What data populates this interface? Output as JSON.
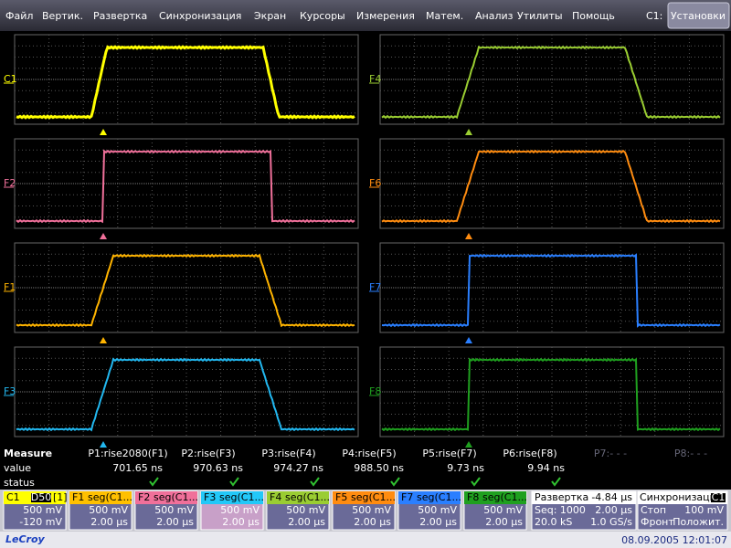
{
  "menu": {
    "items": [
      "Файл",
      "Вертик.",
      "Развертка",
      "Синхронизация",
      "Экран",
      "Курсоры",
      "Измерения",
      "Матем.",
      "Анализ",
      "Утилиты",
      "Помощь"
    ],
    "channel_label": "C1:",
    "button": "Установки"
  },
  "panels": [
    {
      "label": "C1",
      "color": "#ffff00"
    },
    {
      "label": "F2",
      "color": "#f0709a"
    },
    {
      "label": "F1",
      "color": "#ffb400"
    },
    {
      "label": "F3",
      "color": "#22b8f0"
    },
    {
      "label": "F4",
      "color": "#9acd32"
    },
    {
      "label": "F6",
      "color": "#ff8c10"
    },
    {
      "label": "F7",
      "color": "#2a7fff"
    },
    {
      "label": "F8",
      "color": "#1fa01f"
    }
  ],
  "measure": {
    "title": "Measure",
    "row_labels": [
      "value",
      "status"
    ],
    "params": [
      "P1:rise2080(F1)",
      "P2:rise(F3)",
      "P3:rise(F4)",
      "P4:rise(F5)",
      "P5:rise(F7)",
      "P6:rise(F8)",
      "P7:- - -",
      "P8:- - -"
    ],
    "values": [
      "701.65 ns",
      "970.63 ns",
      "974.27 ns",
      "988.50 ns",
      "9.73 ns",
      "9.94 ns"
    ]
  },
  "descriptors": [
    {
      "name": "C1",
      "tag": "D50",
      "extra": "[1]",
      "color": "#ffff00",
      "lines": [
        "500 mV",
        "-120 mV"
      ]
    },
    {
      "name": "F1",
      "source": "seg(C1...",
      "color": "#ffc000",
      "lines": [
        "500 mV",
        "2.00 µs"
      ]
    },
    {
      "name": "F2",
      "source": "seg(C1...",
      "color": "#f0709a",
      "lines": [
        "500 mV",
        "2.00 µs"
      ]
    },
    {
      "name": "F3",
      "source": "seg(C1...",
      "color": "#22c8f8",
      "lines": [
        "500 mV",
        "2.00 µs"
      ]
    },
    {
      "name": "F4",
      "source": "seg(C1...",
      "color": "#9acd32",
      "lines": [
        "500 mV",
        "2.00 µs"
      ]
    },
    {
      "name": "F5",
      "source": "seg(C1...",
      "color": "#ff8c10",
      "lines": [
        "500 mV",
        "2.00 µs"
      ]
    },
    {
      "name": "F7",
      "source": "seg(C1...",
      "color": "#2a7fff",
      "lines": [
        "500 mV",
        "2.00 µs"
      ]
    },
    {
      "name": "F8",
      "source": "seg(C1...",
      "color": "#1fa01f",
      "lines": [
        "500 mV",
        "2.00 µs"
      ]
    }
  ],
  "timebase": {
    "title": "Развертка",
    "delay": "-4.84 µs",
    "rows": [
      [
        "Seq: 1000",
        "2.00 µs"
      ],
      [
        "20.0 kS",
        "1.0 GS/s"
      ]
    ]
  },
  "trigger": {
    "title": "Синхронизация",
    "source": "C1",
    "rows": [
      [
        "Стоп",
        "100 mV"
      ],
      [
        "Фронт",
        "Положит."
      ]
    ]
  },
  "footer": {
    "brand": "LeCroy",
    "datetime": "08.09.2005 12:01:07"
  }
}
